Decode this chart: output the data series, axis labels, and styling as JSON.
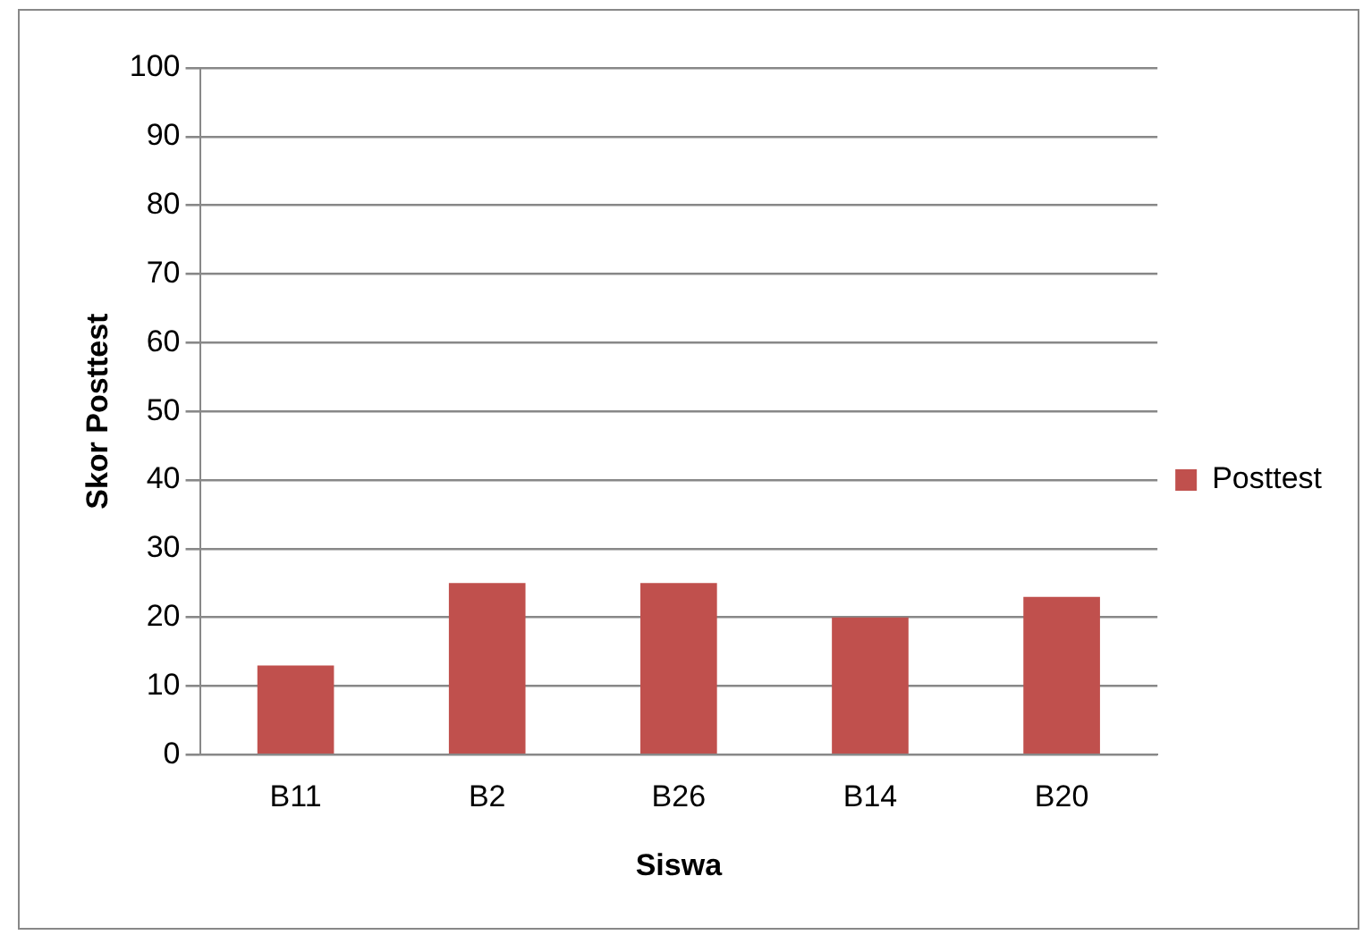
{
  "chart_data": {
    "type": "bar",
    "xlabel": "Siswa",
    "ylabel": "Skor Posttest",
    "categories": [
      "B11",
      "B2",
      "B26",
      "B14",
      "B20"
    ],
    "series": [
      {
        "name": "Posttest",
        "color": "#c0504d",
        "values": [
          13,
          25,
          25,
          20,
          23
        ]
      }
    ],
    "ylim": [
      0,
      100
    ],
    "yticks": [
      0,
      10,
      20,
      30,
      40,
      50,
      60,
      70,
      80,
      90,
      100
    ],
    "grid": "y",
    "legend": "right"
  }
}
